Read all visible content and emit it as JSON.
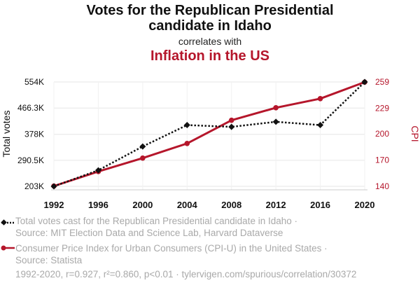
{
  "header": {
    "title_line1": "Votes for the Republican Presidential",
    "title_line2": "candidate in Idaho",
    "correlates": "correlates with",
    "subtitle": "Inflation in the US"
  },
  "colors": {
    "series1": "#111111",
    "series2": "#b5162b"
  },
  "legend": [
    {
      "line1": "Total votes cast for the Republican Presidential candidate in Idaho ·",
      "line2": "Source: MIT Election Data and Science Lab, Harvard Dataverse"
    },
    {
      "line1": "Consumer Price Index for Urban Consumers (CPI-U) in the United States ·",
      "line2": "Source: Statista"
    }
  ],
  "footer": "1992-2020, r=0.927, r²=0.860, p<0.01 · tylervigen.com/spurious/correlation/30372",
  "chart_data": {
    "type": "line",
    "x": [
      1992,
      1996,
      2000,
      2004,
      2008,
      2012,
      2016,
      2020
    ],
    "x_ticks": [
      "1992",
      "1996",
      "2000",
      "2004",
      "2008",
      "2012",
      "2016",
      "2020"
    ],
    "series": [
      {
        "name": "Total votes cast for the Republican Presidential candidate in Idaho",
        "axis": "left",
        "style": "dotted",
        "marker": "diamond",
        "values": [
          203000,
          257000,
          337000,
          409000,
          403000,
          420000,
          409000,
          554000
        ]
      },
      {
        "name": "Consumer Price Index for Urban Consumers (CPI-U) in the United States",
        "axis": "right",
        "style": "solid",
        "marker": "circle",
        "values": [
          140.3,
          156.9,
          172.2,
          188.9,
          215.3,
          229.6,
          240.0,
          258.8
        ]
      }
    ],
    "ylabel_left": "Total votes",
    "ylabel_right": "CPI",
    "yticks_left": [
      203000,
      290500,
      378000,
      466300,
      554000
    ],
    "yticks_left_labels": [
      "203K",
      "290.5K",
      "378K",
      "466.3K",
      "554K"
    ],
    "ylim_left": [
      203000,
      554000
    ],
    "yticks_right": [
      140,
      170,
      200,
      229,
      259
    ],
    "yticks_right_labels": [
      "140",
      "170",
      "200",
      "229",
      "259"
    ],
    "ylim_right": [
      140,
      259
    ],
    "grid": true
  }
}
